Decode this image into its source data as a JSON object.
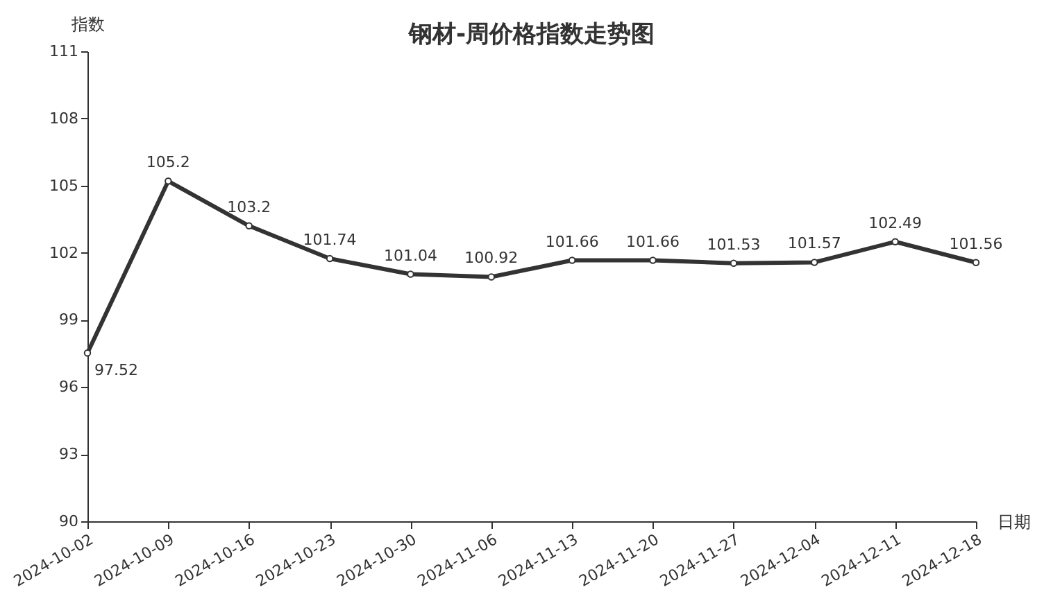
{
  "chart_data": {
    "type": "line",
    "title": "钢材-周价格指数走势图",
    "xlabel": "日期",
    "ylabel": "指数",
    "categories": [
      "2024-10-02",
      "2024-10-09",
      "2024-10-16",
      "2024-10-23",
      "2024-10-30",
      "2024-11-06",
      "2024-11-13",
      "2024-11-20",
      "2024-11-27",
      "2024-12-04",
      "2024-12-11",
      "2024-12-18"
    ],
    "series": [
      {
        "color": "#333333",
        "values": [
          97.52,
          105.2,
          103.2,
          101.74,
          101.04,
          100.92,
          101.66,
          101.66,
          101.53,
          101.57,
          102.49,
          101.56
        ]
      }
    ],
    "ylim": [
      90,
      111
    ],
    "yticks": [
      90,
      93,
      96,
      99,
      102,
      105,
      108,
      111
    ],
    "grid": false,
    "marker": "circle",
    "line_style": "solid",
    "data_labels": true
  }
}
